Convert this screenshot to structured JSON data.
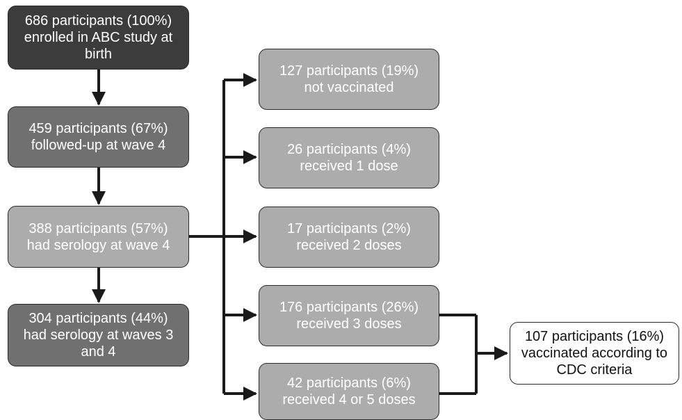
{
  "colors": {
    "dark": "#3c3c3c",
    "medium": "#707070",
    "light": "#acacac",
    "white": "#ffffff",
    "line": "#1a1a1a"
  },
  "boxes": {
    "enrolled": "686 participants (100%)\nenrolled in ABC study at\nbirth",
    "followed": "459 participants (67%)\nfollowed-up at wave 4",
    "serology_w4": "388 participants (57%)\nhad serology at wave 4",
    "serology_w34": "304 participants (44%)\nhad serology at waves 3\nand 4",
    "not_vaccinated": "127 participants (19%)\nnot vaccinated",
    "one_dose": "26 participants (4%)\nreceived 1 dose",
    "two_doses": "17 participants (2%)\nreceived 2 doses",
    "three_doses": "176 participants (26%)\nreceived 3 doses",
    "four_five_doses": "42 participants (6%)\nreceived 4 or 5 doses",
    "cdc": "107 participants (16%)\nvaccinated according to\nCDC criteria"
  }
}
